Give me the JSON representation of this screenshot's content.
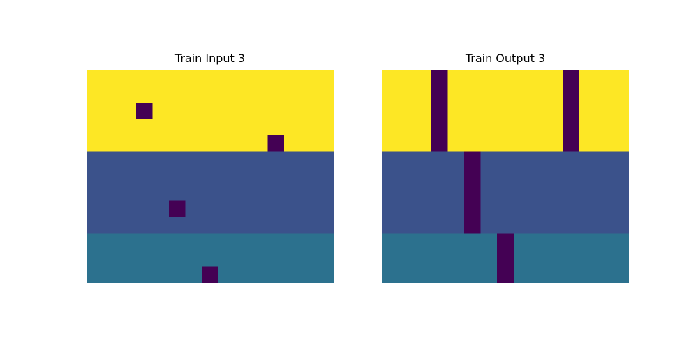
{
  "figure": {
    "panels": [
      {
        "title": "Train Input 3",
        "grid": [
          [
            4,
            4,
            4,
            4,
            4,
            4,
            4,
            4,
            4,
            4,
            4,
            4,
            4,
            4,
            4
          ],
          [
            4,
            4,
            4,
            4,
            4,
            4,
            4,
            4,
            4,
            4,
            4,
            4,
            4,
            4,
            4
          ],
          [
            4,
            4,
            4,
            0,
            4,
            4,
            4,
            4,
            4,
            4,
            4,
            4,
            4,
            4,
            4
          ],
          [
            4,
            4,
            4,
            4,
            4,
            4,
            4,
            4,
            4,
            4,
            4,
            4,
            4,
            4,
            4
          ],
          [
            4,
            4,
            4,
            4,
            4,
            4,
            4,
            4,
            4,
            4,
            4,
            0,
            4,
            4,
            4
          ],
          [
            1,
            1,
            1,
            1,
            1,
            1,
            1,
            1,
            1,
            1,
            1,
            1,
            1,
            1,
            1
          ],
          [
            1,
            1,
            1,
            1,
            1,
            1,
            1,
            1,
            1,
            1,
            1,
            1,
            1,
            1,
            1
          ],
          [
            1,
            1,
            1,
            1,
            1,
            1,
            1,
            1,
            1,
            1,
            1,
            1,
            1,
            1,
            1
          ],
          [
            1,
            1,
            1,
            1,
            1,
            0,
            1,
            1,
            1,
            1,
            1,
            1,
            1,
            1,
            1
          ],
          [
            1,
            1,
            1,
            1,
            1,
            1,
            1,
            1,
            1,
            1,
            1,
            1,
            1,
            1,
            1
          ],
          [
            2,
            2,
            2,
            2,
            2,
            2,
            2,
            2,
            2,
            2,
            2,
            2,
            2,
            2,
            2
          ],
          [
            2,
            2,
            2,
            2,
            2,
            2,
            2,
            2,
            2,
            2,
            2,
            2,
            2,
            2,
            2
          ],
          [
            2,
            2,
            2,
            2,
            2,
            2,
            2,
            0,
            2,
            2,
            2,
            2,
            2,
            2,
            2
          ]
        ]
      },
      {
        "title": "Train Output 3",
        "grid": [
          [
            4,
            4,
            4,
            0,
            4,
            4,
            4,
            4,
            4,
            4,
            4,
            0,
            4,
            4,
            4
          ],
          [
            4,
            4,
            4,
            0,
            4,
            4,
            4,
            4,
            4,
            4,
            4,
            0,
            4,
            4,
            4
          ],
          [
            4,
            4,
            4,
            0,
            4,
            4,
            4,
            4,
            4,
            4,
            4,
            0,
            4,
            4,
            4
          ],
          [
            4,
            4,
            4,
            0,
            4,
            4,
            4,
            4,
            4,
            4,
            4,
            0,
            4,
            4,
            4
          ],
          [
            4,
            4,
            4,
            0,
            4,
            4,
            4,
            4,
            4,
            4,
            4,
            0,
            4,
            4,
            4
          ],
          [
            1,
            1,
            1,
            1,
            1,
            0,
            1,
            1,
            1,
            1,
            1,
            1,
            1,
            1,
            1
          ],
          [
            1,
            1,
            1,
            1,
            1,
            0,
            1,
            1,
            1,
            1,
            1,
            1,
            1,
            1,
            1
          ],
          [
            1,
            1,
            1,
            1,
            1,
            0,
            1,
            1,
            1,
            1,
            1,
            1,
            1,
            1,
            1
          ],
          [
            1,
            1,
            1,
            1,
            1,
            0,
            1,
            1,
            1,
            1,
            1,
            1,
            1,
            1,
            1
          ],
          [
            1,
            1,
            1,
            1,
            1,
            0,
            1,
            1,
            1,
            1,
            1,
            1,
            1,
            1,
            1
          ],
          [
            2,
            2,
            2,
            2,
            2,
            2,
            2,
            0,
            2,
            2,
            2,
            2,
            2,
            2,
            2
          ],
          [
            2,
            2,
            2,
            2,
            2,
            2,
            2,
            0,
            2,
            2,
            2,
            2,
            2,
            2,
            2
          ],
          [
            2,
            2,
            2,
            2,
            2,
            2,
            2,
            0,
            2,
            2,
            2,
            2,
            2,
            2,
            2
          ]
        ]
      }
    ],
    "palette": {
      "0": "#440154",
      "1": "#3b528b",
      "2": "#2c718e",
      "4": "#fde725"
    }
  }
}
